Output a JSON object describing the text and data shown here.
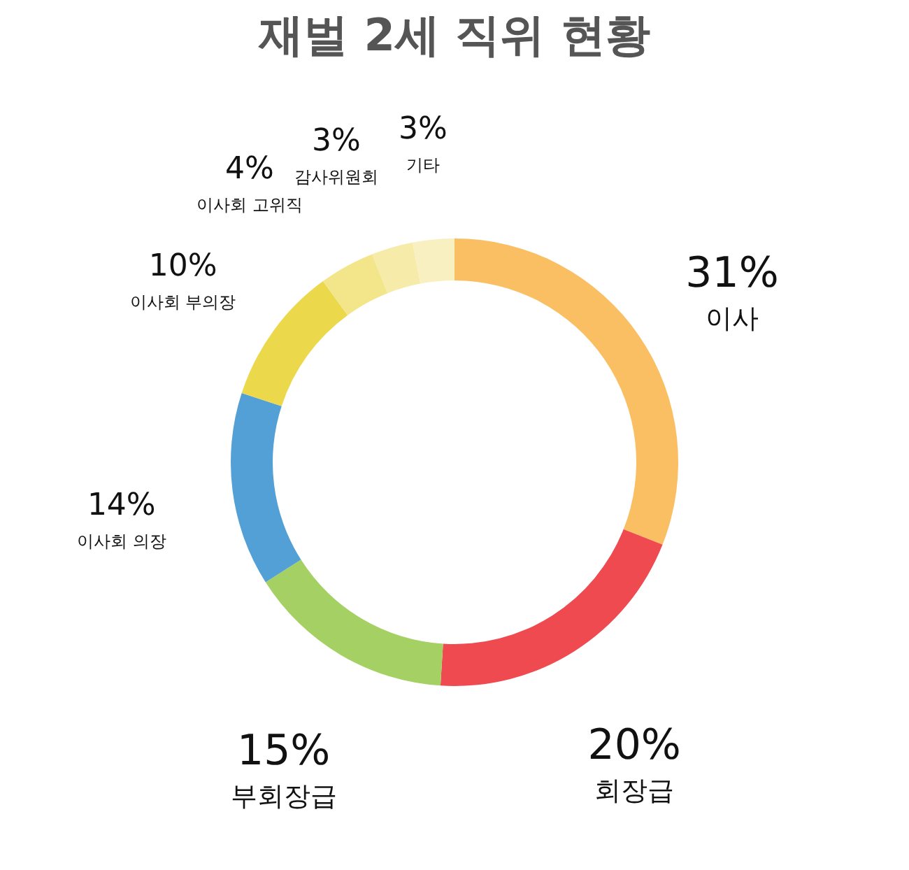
{
  "chart_data": {
    "type": "donut",
    "title": "재벌 2세 직위 현황",
    "categories": [
      "이사",
      "회장급",
      "부회장급",
      "이사회 의장",
      "이사회 부의장",
      "이사회 고위직",
      "감사위원회",
      "기타"
    ],
    "values": [
      31,
      20,
      15,
      14,
      10,
      4,
      3,
      3
    ],
    "value_labels": [
      "31%",
      "20%",
      "15%",
      "14%",
      "10%",
      "4%",
      "3%",
      "3%"
    ],
    "colors": [
      "#fbbf63",
      "#ef4a50",
      "#a5d063",
      "#52a0d6",
      "#ecd84b",
      "#f3e68a",
      "#f6eba8",
      "#f8f0c0"
    ]
  }
}
